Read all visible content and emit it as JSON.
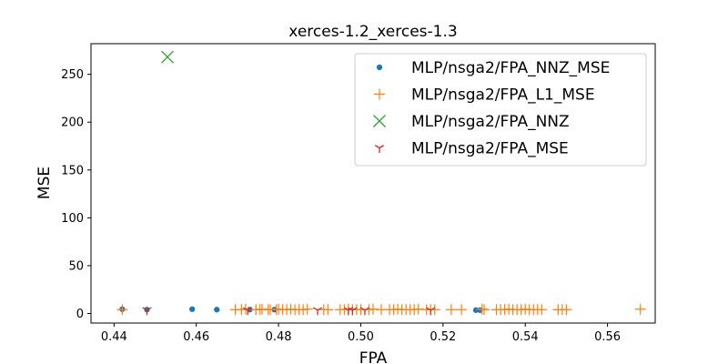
{
  "chart_data": {
    "type": "scatter",
    "title": "xerces-1.2_xerces-1.3",
    "xlabel": "FPA",
    "ylabel": "MSE",
    "xlim": [
      0.4344,
      0.5716
    ],
    "ylim": [
      -10,
      282
    ],
    "xticks": [
      "0.44",
      "0.46",
      "0.48",
      "0.50",
      "0.52",
      "0.54",
      "0.56"
    ],
    "yticks": [
      "0",
      "50",
      "100",
      "150",
      "200",
      "250"
    ],
    "grid": false,
    "legend_position": "upper right",
    "series": [
      {
        "name": "MLP/nsga2/FPA_NNZ_MSE",
        "marker": "dot",
        "color": "#1f77b4",
        "points": [
          [
            0.442,
            4.5
          ],
          [
            0.448,
            4.0
          ],
          [
            0.459,
            4.5
          ],
          [
            0.465,
            4.0
          ],
          [
            0.473,
            4.0
          ],
          [
            0.479,
            4.0
          ],
          [
            0.528,
            3.5
          ],
          [
            0.529,
            3.5
          ]
        ]
      },
      {
        "name": "MLP/nsga2/FPA_L1_MSE",
        "marker": "plus",
        "color": "#ff7f0e",
        "points": [
          [
            0.442,
            4.0
          ],
          [
            0.4695,
            4.0
          ],
          [
            0.471,
            4.0
          ],
          [
            0.472,
            4.5
          ],
          [
            0.4745,
            4.0
          ],
          [
            0.4755,
            4.0
          ],
          [
            0.476,
            4.5
          ],
          [
            0.4775,
            4.0
          ],
          [
            0.478,
            4.0
          ],
          [
            0.4795,
            4.0
          ],
          [
            0.48,
            4.5
          ],
          [
            0.481,
            4.0
          ],
          [
            0.482,
            4.0
          ],
          [
            0.483,
            4.5
          ],
          [
            0.484,
            4.0
          ],
          [
            0.485,
            4.0
          ],
          [
            0.486,
            4.0
          ],
          [
            0.487,
            4.5
          ],
          [
            0.491,
            4.0
          ],
          [
            0.492,
            4.0
          ],
          [
            0.495,
            4.0
          ],
          [
            0.496,
            4.0
          ],
          [
            0.497,
            4.5
          ],
          [
            0.498,
            4.0
          ],
          [
            0.499,
            4.0
          ],
          [
            0.5,
            4.0
          ],
          [
            0.502,
            4.0
          ],
          [
            0.503,
            4.5
          ],
          [
            0.505,
            4.0
          ],
          [
            0.507,
            4.0
          ],
          [
            0.508,
            4.0
          ],
          [
            0.509,
            4.5
          ],
          [
            0.51,
            4.0
          ],
          [
            0.511,
            4.0
          ],
          [
            0.512,
            4.0
          ],
          [
            0.513,
            4.0
          ],
          [
            0.514,
            4.5
          ],
          [
            0.516,
            4.0
          ],
          [
            0.517,
            4.0
          ],
          [
            0.518,
            4.0
          ],
          [
            0.522,
            4.0
          ],
          [
            0.5245,
            4.0
          ],
          [
            0.5295,
            4.5
          ],
          [
            0.53,
            4.0
          ],
          [
            0.533,
            4.0
          ],
          [
            0.534,
            4.0
          ],
          [
            0.535,
            4.0
          ],
          [
            0.536,
            4.5
          ],
          [
            0.537,
            4.0
          ],
          [
            0.538,
            4.0
          ],
          [
            0.539,
            4.0
          ],
          [
            0.54,
            4.5
          ],
          [
            0.541,
            4.0
          ],
          [
            0.542,
            4.0
          ],
          [
            0.543,
            4.0
          ],
          [
            0.544,
            4.0
          ],
          [
            0.548,
            4.0
          ],
          [
            0.549,
            4.0
          ],
          [
            0.55,
            4.0
          ],
          [
            0.568,
            4.5
          ]
        ]
      },
      {
        "name": "MLP/nsga2/FPA_NNZ",
        "marker": "x",
        "color": "#2ca02c",
        "points": [
          [
            0.453,
            268
          ]
        ]
      },
      {
        "name": "MLP/nsga2/FPA_MSE",
        "marker": "tri",
        "color": "#d62728",
        "points": [
          [
            0.448,
            3.5
          ],
          [
            0.4725,
            3.5
          ],
          [
            0.4895,
            3.5
          ],
          [
            0.497,
            3.5
          ],
          [
            0.498,
            3.5
          ],
          [
            0.501,
            3.5
          ],
          [
            0.517,
            3.5
          ]
        ]
      }
    ]
  }
}
